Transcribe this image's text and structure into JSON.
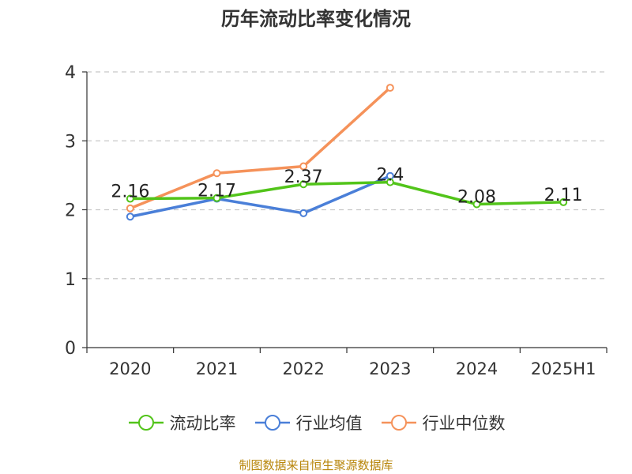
{
  "chart_data": {
    "type": "line",
    "title": "历年流动比率变化情况",
    "categories": [
      "2020",
      "2021",
      "2022",
      "2023",
      "2024",
      "2025H1"
    ],
    "ylim": [
      0,
      4
    ],
    "yticks": [
      "0",
      "1",
      "2",
      "3",
      "4"
    ],
    "grid": true,
    "legend_position": "bottom",
    "series": [
      {
        "name": "流动比率",
        "color": "#52c41a",
        "values": [
          2.16,
          2.17,
          2.37,
          2.4,
          2.08,
          2.11
        ],
        "labels": [
          "2.16",
          "2.17",
          "2.37",
          "2.4",
          "2.08",
          "2.11"
        ]
      },
      {
        "name": "行业均值",
        "color": "#4a7fd8",
        "values": [
          1.9,
          2.16,
          1.95,
          2.49,
          null,
          null
        ]
      },
      {
        "name": "行业中位数",
        "color": "#f5925a",
        "values": [
          2.02,
          2.53,
          2.63,
          3.77,
          null,
          null
        ]
      }
    ]
  },
  "footer": {
    "source": "制图数据来自恒生聚源数据库"
  }
}
